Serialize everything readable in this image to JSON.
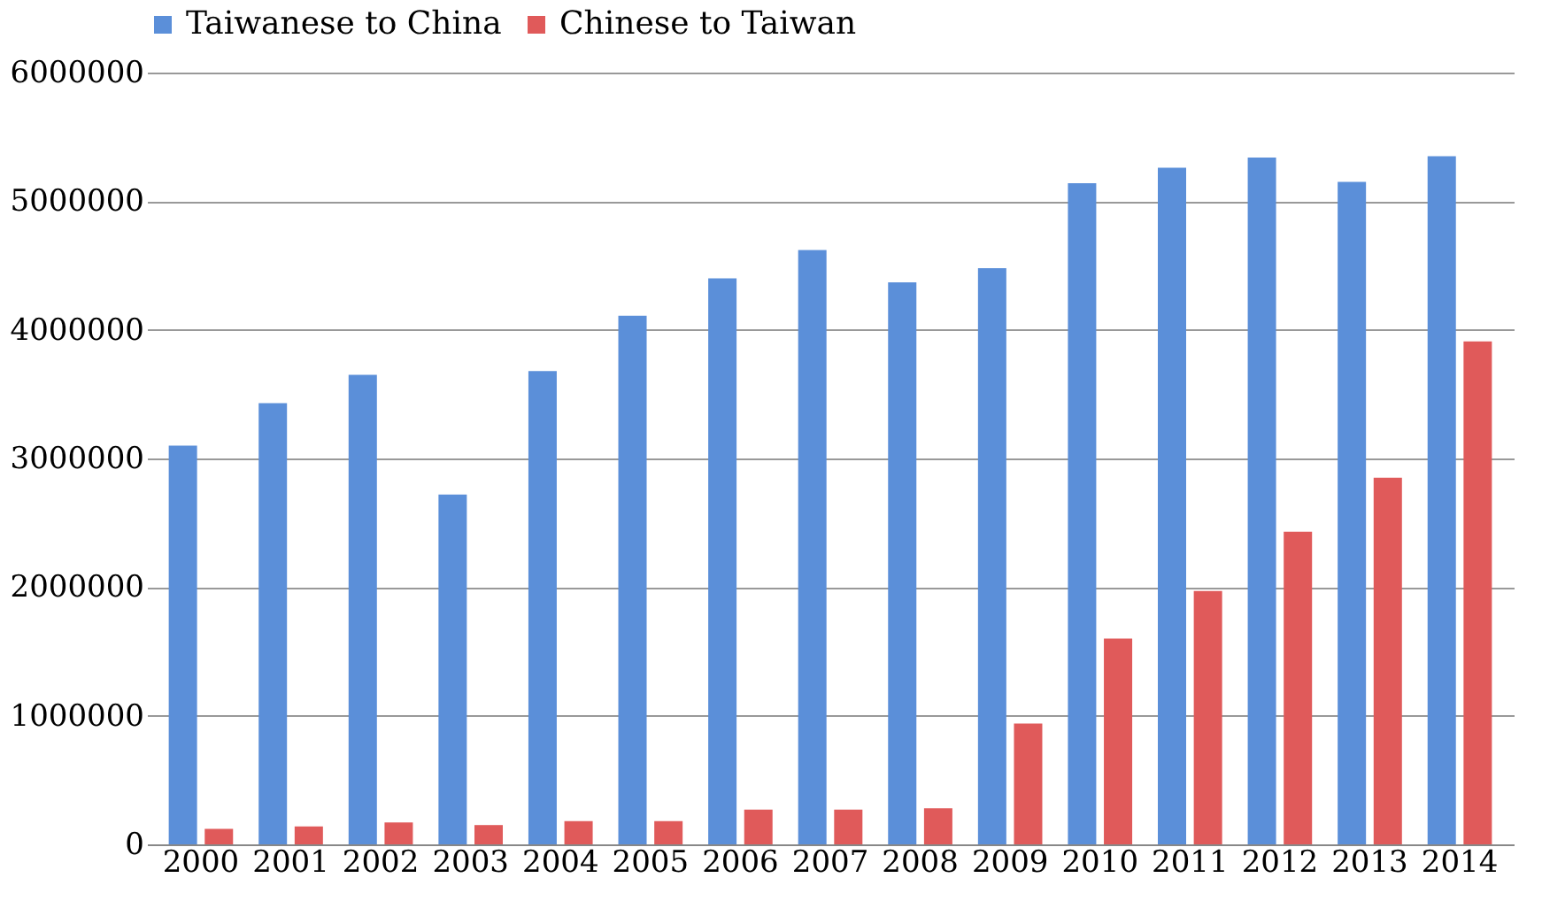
{
  "chart_data": {
    "type": "bar",
    "categories": [
      "2000",
      "2001",
      "2002",
      "2003",
      "2004",
      "2005",
      "2006",
      "2007",
      "2008",
      "2009",
      "2010",
      "2011",
      "2012",
      "2013",
      "2014"
    ],
    "series": [
      {
        "name": "Taiwanese to China",
        "color": "#5b8fd9",
        "values": [
          3100000,
          3430000,
          3650000,
          2720000,
          3680000,
          4110000,
          4400000,
          4620000,
          4370000,
          4480000,
          5140000,
          5260000,
          5340000,
          5150000,
          5350000
        ]
      },
      {
        "name": "Chinese to Taiwan",
        "color": "#e05a5a",
        "values": [
          120000,
          140000,
          170000,
          150000,
          180000,
          180000,
          270000,
          270000,
          280000,
          940000,
          1600000,
          1970000,
          2430000,
          2850000,
          3910000
        ]
      }
    ],
    "ylim": [
      0,
      6000000
    ],
    "yticks": [
      0,
      1000000,
      2000000,
      3000000,
      4000000,
      5000000,
      6000000
    ],
    "grid": "y",
    "legend": "top"
  }
}
